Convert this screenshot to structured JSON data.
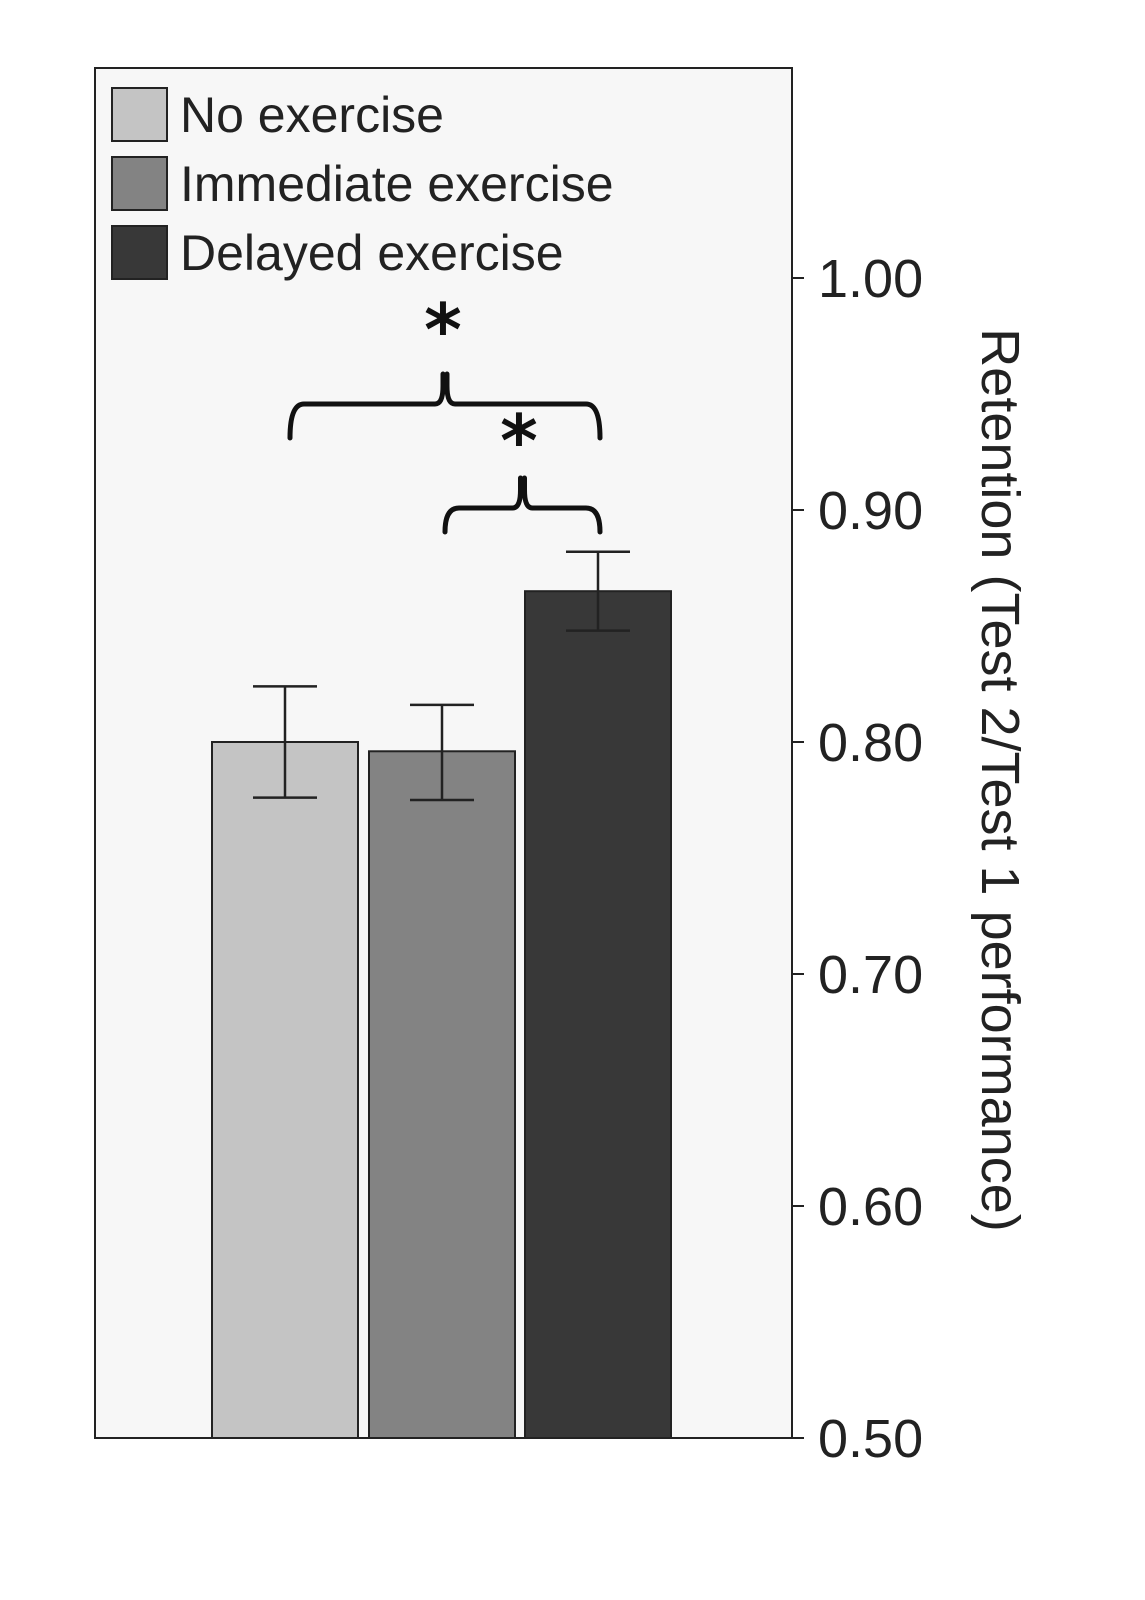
{
  "chart_data": {
    "type": "bar",
    "title": "",
    "xlabel": "",
    "ylabel": "Retention (Test 2/Test 1 performance)",
    "ylim": [
      0.5,
      1.08
    ],
    "yaxis_position": "right",
    "yticks": [
      0.5,
      0.6,
      0.7,
      0.8,
      0.9,
      1.0
    ],
    "ytick_labels": [
      "0.50",
      "0.60",
      "0.70",
      "0.80",
      "0.90",
      "1.00"
    ],
    "grid": false,
    "legend_position": "top-left",
    "categories": [
      "No exercise",
      "Immediate exercise",
      "Delayed exercise"
    ],
    "values": [
      0.8,
      0.796,
      0.865
    ],
    "error_low": [
      0.776,
      0.775,
      0.848
    ],
    "error_high": [
      0.824,
      0.816,
      0.882
    ],
    "colors": [
      "#c4c4c4",
      "#838383",
      "#383838"
    ],
    "significance": [
      {
        "from": 0,
        "to": 2,
        "label": "*"
      },
      {
        "from": 1,
        "to": 2,
        "label": "*"
      }
    ]
  }
}
